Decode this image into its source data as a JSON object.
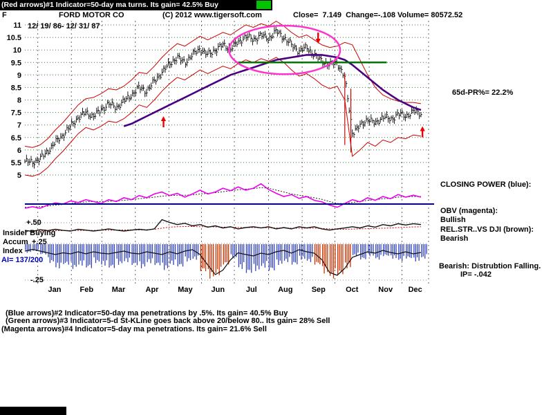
{
  "header": {
    "indicator_line": "(Red arrows)#1 Indicator=50-day ma turns. Its gain= 42.5% Buy",
    "symbol": "F",
    "company": "FORD MOTOR CO",
    "copyright": "(C) 2012 www.tigersoft.com",
    "quote": "Close=  7.149  Change=-.108 Volume= 80572.52"
  },
  "chart_labels": {
    "date_range": "12/ 19/ 86- 12/ 31/ 87",
    "pr65": "65d-PR%= 22.2%"
  },
  "right_panel": {
    "closing_power": "CLOSING POWER (blue):",
    "obv_label": "OBV (magenta):",
    "obv_status": "Bullish",
    "relstr_label": "REL.STR..VS DJI (brown):",
    "relstr_status": "Bearish",
    "distribution": "Bearish: Distrubtion Falling.",
    "ip": "IP= -.042"
  },
  "left_panel": {
    "plus50": "+.50",
    "insider": "Insider Buying",
    "accum": "Accum",
    "plus25": "+.25",
    "index": "Index",
    "ai": "AI= 137/200",
    "minus25": "-.25"
  },
  "footer": {
    "line1": "(Blue arrows)#2 Indicator=50-day ma penetrations by .5%. Its gain= 40.5% Buy",
    "line2": "(Green arrows)#3 Indicator=5-d St-KLine goes back above 20/below 80.. Its gain= 28% Sell",
    "line3": "(Magenta arrows)#4 Indicator=5-day ma penetrations. Its gain= 21.6% Sell"
  },
  "chart_data": {
    "type": "candlestick",
    "title": "FORD MOTOR CO",
    "date_range": "12/ 19/ 86- 12/ 31/ 87",
    "close": 7.149,
    "change": -0.108,
    "volume": 80572.52,
    "y_min": 5,
    "y_max": 11,
    "y_ticks": [
      11,
      10.5,
      10,
      9.5,
      9,
      8.5,
      8,
      7.5,
      7,
      6.5,
      6,
      5.5,
      5
    ],
    "months": [
      "Jan",
      "Feb",
      "Mar",
      "Apr",
      "May",
      "Jun",
      "Jul",
      "Aug",
      "Sep",
      "Oct",
      "Nov",
      "Dec"
    ],
    "month_bounds": [
      1.7,
      6.1,
      10.1,
      14.5,
      18.9,
      23.2,
      27.5,
      32,
      36.4,
      40.7,
      45.2,
      49.5,
      53
    ],
    "weeks_total": 53,
    "price_weekly": [
      5.55,
      5.5,
      5.65,
      5.95,
      6.3,
      6.6,
      6.95,
      7.3,
      7.5,
      7.35,
      7.6,
      7.85,
      7.7,
      7.95,
      8.2,
      8.5,
      8.35,
      8.75,
      9.1,
      9.45,
      9.7,
      9.5,
      9.8,
      10.05,
      9.8,
      10.0,
      10.2,
      10.05,
      10.3,
      10.55,
      10.4,
      10.6,
      10.45,
      10.75,
      10.5,
      10.2,
      9.95,
      10.1,
      9.8,
      9.55,
      9.4,
      9.5,
      8.9,
      6.7,
      6.95,
      7.25,
      7.05,
      7.35,
      7.2,
      7.45,
      7.35,
      7.55,
      7.45
    ],
    "upper_band": [
      6.15,
      6.1,
      6.2,
      6.45,
      6.8,
      7.1,
      7.45,
      7.8,
      8.05,
      8.1,
      8.25,
      8.45,
      8.4,
      8.55,
      8.8,
      9.1,
      9.05,
      9.35,
      9.7,
      10.0,
      10.25,
      10.15,
      10.35,
      10.55,
      10.4,
      10.55,
      10.7,
      10.6,
      10.8,
      11.0,
      10.9,
      11.05,
      10.95,
      11.15,
      10.95,
      10.7,
      10.5,
      10.6,
      10.4,
      10.2,
      10.1,
      10.15,
      10.3,
      10.2,
      9.6,
      9.0,
      8.5,
      8.2,
      8.05,
      7.95,
      7.9,
      7.9,
      7.85
    ],
    "lower_band": [
      5.0,
      4.95,
      5.05,
      5.3,
      5.65,
      5.95,
      6.3,
      6.65,
      6.9,
      6.8,
      6.95,
      7.15,
      7.1,
      7.25,
      7.5,
      7.8,
      7.7,
      8.0,
      8.35,
      8.65,
      8.9,
      8.8,
      9.0,
      9.2,
      9.05,
      9.2,
      9.35,
      9.25,
      9.45,
      9.6,
      9.5,
      9.65,
      9.55,
      9.7,
      9.5,
      9.2,
      8.95,
      9.05,
      8.85,
      8.6,
      8.45,
      8.55,
      8.0,
      5.75,
      6.0,
      6.3,
      6.15,
      6.4,
      6.3,
      6.5,
      6.45,
      6.6,
      6.55
    ],
    "ma50": [
      null,
      null,
      null,
      null,
      null,
      null,
      null,
      null,
      null,
      null,
      null,
      null,
      null,
      6.95,
      7.05,
      7.2,
      7.35,
      7.5,
      7.65,
      7.8,
      7.95,
      8.1,
      8.25,
      8.4,
      8.55,
      8.7,
      8.85,
      9.0,
      9.1,
      9.2,
      9.3,
      9.4,
      9.5,
      9.6,
      9.65,
      9.7,
      9.75,
      9.8,
      9.8,
      9.8,
      9.75,
      9.7,
      9.6,
      9.4,
      9.15,
      8.9,
      8.65,
      8.4,
      8.2,
      8.0,
      7.85,
      7.7,
      7.6
    ],
    "crash_bars": [
      {
        "week": 42.0,
        "hi": 9.05,
        "lo": 6.2
      },
      {
        "week": 42.8,
        "hi": 8.45,
        "lo": 5.9
      }
    ],
    "green_line": {
      "from_week": 28,
      "to_week": 47.5,
      "price": 9.5
    },
    "ellipse": {
      "cx_week": 34.1,
      "cy_price": 10.0,
      "rx_week": 7.3,
      "ry_price": 0.97
    },
    "arrows": [
      {
        "week": 18.2,
        "price": 7.35,
        "dir": "up"
      },
      {
        "week": 38.5,
        "price": 10.25,
        "dir": "down"
      },
      {
        "week": 52.2,
        "price": 6.95,
        "dir": "up"
      }
    ],
    "closing_power": [
      0.15,
      0.2,
      0.15,
      0.25,
      0.32,
      0.28,
      0.38,
      0.33,
      0.42,
      0.36,
      0.3,
      0.42,
      0.36,
      0.48,
      0.42,
      0.55,
      0.48,
      0.6,
      0.66,
      0.55,
      0.62,
      0.5,
      0.6,
      0.72,
      0.6,
      0.66,
      0.78,
      0.7,
      0.82,
      0.72,
      0.78,
      0.92,
      0.74,
      0.62,
      0.52,
      0.58,
      0.46,
      0.52,
      0.4,
      0.35,
      0.25,
      0.18,
      0.3,
      0.42,
      0.35,
      0.48,
      0.4,
      0.52,
      0.45,
      0.58,
      0.5,
      0.56,
      0.5
    ],
    "cp_mean": [
      0.18,
      0.19,
      0.2,
      0.22,
      0.25,
      0.27,
      0.3,
      0.33,
      0.35,
      0.36,
      0.36,
      0.37,
      0.38,
      0.4,
      0.42,
      0.45,
      0.47,
      0.5,
      0.53,
      0.55,
      0.56,
      0.56,
      0.57,
      0.6,
      0.62,
      0.64,
      0.67,
      0.7,
      0.73,
      0.75,
      0.77,
      0.8,
      0.78,
      0.72,
      0.66,
      0.6,
      0.56,
      0.52,
      0.48,
      0.43,
      0.36,
      0.3,
      0.3,
      0.33,
      0.36,
      0.4,
      0.42,
      0.45,
      0.46,
      0.5,
      0.51,
      0.52,
      0.52
    ],
    "obv": [
      0.45,
      0.4,
      0.48,
      0.44,
      0.5,
      0.45,
      0.42,
      0.5,
      0.46,
      0.42,
      0.46,
      0.52,
      0.46,
      0.42,
      0.46,
      0.5,
      0.46,
      0.52,
      0.95,
      0.82,
      0.72,
      0.78,
      0.66,
      0.72,
      0.6,
      0.66,
      0.56,
      0.62,
      0.52,
      0.58,
      0.62,
      0.56,
      0.62,
      0.52,
      0.58,
      0.52,
      0.62,
      0.56,
      0.62,
      0.52,
      0.46,
      0.52,
      0.56,
      0.62,
      0.56,
      0.66,
      0.6,
      0.72,
      0.66,
      0.76,
      0.7,
      0.76,
      0.72
    ],
    "obv_signal": [
      0.42,
      0.42,
      0.43,
      0.43,
      0.44,
      0.44,
      0.44,
      0.45,
      0.45,
      0.45,
      0.46,
      0.46,
      0.46,
      0.47,
      0.47,
      0.47,
      0.48,
      0.5,
      0.55,
      0.6,
      0.62,
      0.63,
      0.63,
      0.62,
      0.62,
      0.61,
      0.6,
      0.6,
      0.59,
      0.58,
      0.58,
      0.57,
      0.57,
      0.56,
      0.56,
      0.55,
      0.55,
      0.55,
      0.55,
      0.54,
      0.52,
      0.5,
      0.5,
      0.51,
      0.52,
      0.53,
      0.54,
      0.55,
      0.56,
      0.58,
      0.6,
      0.61,
      0.62
    ],
    "accum_bars": {
      "values": [
        0.25,
        0.2,
        0.3,
        0.55,
        0.7,
        0.6,
        0.72,
        0.62,
        0.7,
        0.55,
        0.62,
        0.7,
        0.6,
        0.52,
        0.62,
        0.7,
        0.55,
        0.62,
        0.75,
        0.6,
        0.66,
        0.5,
        0.45,
        0.8,
        1.0,
        0.9,
        0.6,
        0.4,
        0.72,
        0.85,
        0.78,
        0.68,
        0.78,
        0.6,
        0.52,
        0.6,
        0.45,
        0.52,
        0.6,
        0.85,
        1.0,
        0.9,
        0.7,
        0.35,
        0.45,
        0.35,
        0.45,
        0.35,
        0.42,
        0.5,
        0.42,
        0.5,
        0.42
      ],
      "colors": [
        "B",
        "B",
        "B",
        "B",
        "B",
        "B",
        "B",
        "B",
        "B",
        "B",
        "B",
        "B",
        "B",
        "B",
        "B",
        "B",
        "B",
        "B",
        "B",
        "B",
        "B",
        "B",
        "B",
        "R",
        "R",
        "R",
        "R",
        "B",
        "B",
        "B",
        "B",
        "B",
        "B",
        "B",
        "B",
        "B",
        "B",
        "B",
        "R",
        "R",
        "R",
        "R",
        "R",
        "B",
        "B",
        "B",
        "B",
        "B",
        "B",
        "B",
        "B",
        "B",
        "B"
      ]
    },
    "accum_line": [
      0.8,
      0.85,
      0.8,
      0.75,
      0.7,
      0.75,
      0.72,
      0.78,
      0.72,
      0.78,
      0.74,
      0.72,
      0.76,
      0.8,
      0.74,
      0.72,
      0.78,
      0.74,
      0.7,
      0.78,
      0.72,
      0.8,
      0.84,
      0.7,
      0.4,
      0.12,
      0.25,
      0.55,
      0.75,
      0.7,
      0.66,
      0.74,
      0.7,
      0.78,
      0.82,
      0.74,
      0.84,
      0.78,
      0.74,
      0.55,
      0.18,
      0.1,
      0.3,
      0.62,
      0.7,
      0.78,
      0.74,
      0.82,
      0.76,
      0.72,
      0.78,
      0.72,
      0.76
    ],
    "colors": {
      "grid": "#2f7f2f",
      "vgrid": "#444444",
      "price": "#000000",
      "band": "#cc0000",
      "ma": "#4b0082",
      "green": "#007700",
      "ellipse": "#ff33cc",
      "arrow": "#ee0000",
      "cp": "#ee00ee",
      "blue_line": "#00008b",
      "bar_blue": "#3344bb",
      "bar_red": "#cc3300"
    }
  }
}
